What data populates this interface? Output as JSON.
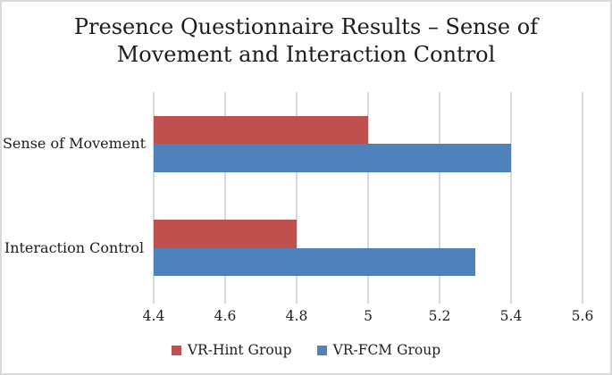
{
  "figure": {
    "background": "#FFFFFF",
    "border_color": "#D9D9D9"
  },
  "chart_data": {
    "type": "bar",
    "orientation": "horizontal",
    "title": "Presence Questionnaire Results – Sense of Movement and Interaction Control",
    "categories": [
      "Sense of Movement",
      "Interaction Control"
    ],
    "series": [
      {
        "name": "VR-Hint Group",
        "color": "#C0504D",
        "values": [
          5.0,
          4.8
        ]
      },
      {
        "name": "VR-FCM Group",
        "color": "#4F81BD",
        "values": [
          5.4,
          5.3
        ]
      }
    ],
    "xlim": [
      4.4,
      5.6
    ],
    "xtick_values": [
      4.4,
      4.6,
      4.8,
      5,
      5.2,
      5.4,
      5.6
    ],
    "xtick_labels": [
      "4.4",
      "4.6",
      "4.8",
      "5",
      "5.2",
      "5.4",
      "5.6"
    ],
    "grid": true,
    "gridline_color": "#D9D9D9",
    "text_color": "#1D1D1D",
    "legend_position": "bottom"
  }
}
